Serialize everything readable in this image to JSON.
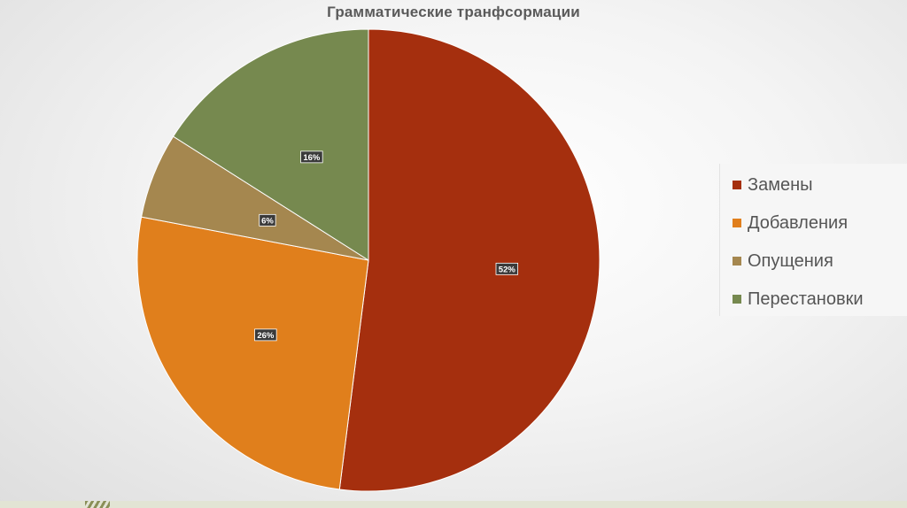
{
  "chart_data": {
    "type": "pie",
    "title": "Грамматические транфсормации",
    "categories": [
      "Замены",
      "Добавления",
      "Опущения",
      "Перестановки"
    ],
    "values": [
      52,
      26,
      6,
      16
    ],
    "labels": [
      "52%",
      "26%",
      "6%",
      "16%"
    ],
    "colors": [
      "#a52f0e",
      "#e07f1c",
      "#a5874f",
      "#76894f"
    ],
    "start_angle": "12 o'clock",
    "direction": "clockwise",
    "legend_position": "right"
  },
  "colors": {
    "label_bg": "#3a3a3a",
    "label_text": "#ffffff"
  }
}
